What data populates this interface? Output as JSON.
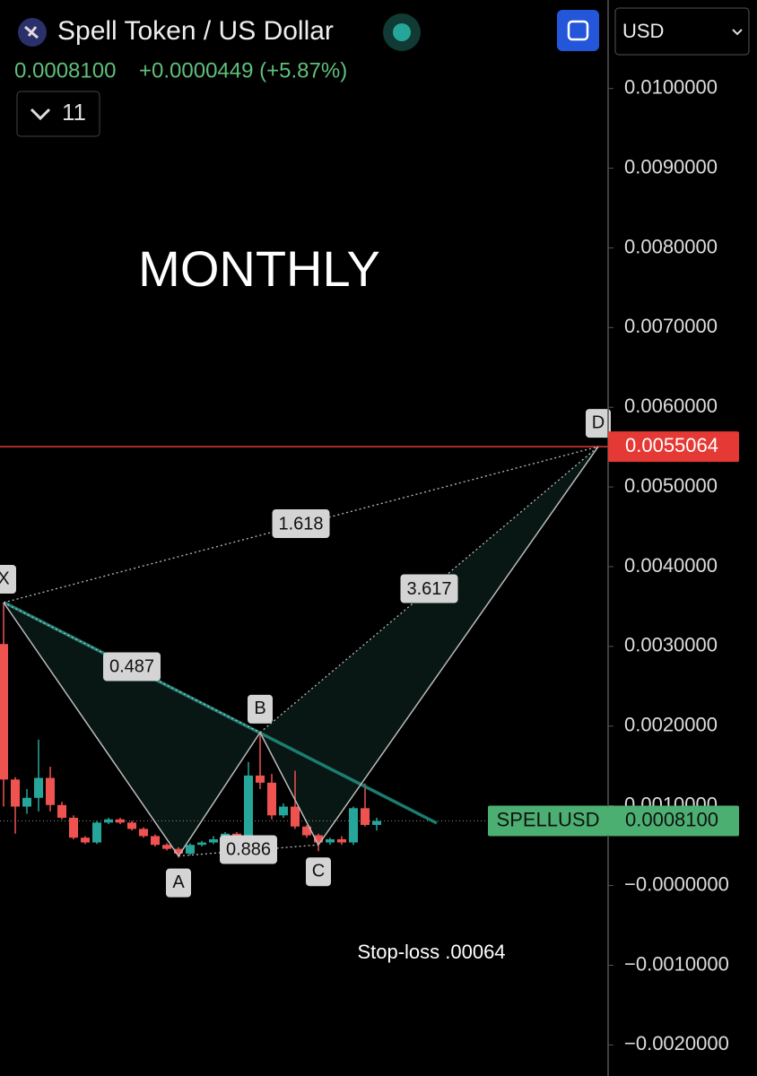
{
  "header": {
    "title": "Spell Token / US Dollar",
    "price": "0.0008100",
    "change": "+0.0000449 (+5.87%)",
    "interval": "11",
    "currency": "USD"
  },
  "annotation": "MONTHLY",
  "stop_loss": "Stop-loss  .00064",
  "chart_data": {
    "type": "candlestick",
    "candles": [
      {
        "open": 0.00303,
        "high": 0.00355,
        "low": 0.00099,
        "close": 0.00133
      },
      {
        "open": 0.00133,
        "high": 0.00136,
        "low": 0.00065,
        "close": 0.00099
      },
      {
        "open": 0.00099,
        "high": 0.00121,
        "low": 0.0009,
        "close": 0.0011
      },
      {
        "open": 0.0011,
        "high": 0.00183,
        "low": 0.00093,
        "close": 0.00135
      },
      {
        "open": 0.00135,
        "high": 0.00149,
        "low": 0.00093,
        "close": 0.00101
      },
      {
        "open": 0.00101,
        "high": 0.00105,
        "low": 0.00083,
        "close": 0.00085
      },
      {
        "open": 0.00085,
        "high": 0.00088,
        "low": 0.00058,
        "close": 0.0006
      },
      {
        "open": 0.0006,
        "high": 0.00062,
        "low": 0.00052,
        "close": 0.00054
      },
      {
        "open": 0.00054,
        "high": 0.00081,
        "low": 0.00052,
        "close": 0.00079
      },
      {
        "open": 0.00079,
        "high": 0.00085,
        "low": 0.00077,
        "close": 0.00083
      },
      {
        "open": 0.00083,
        "high": 0.00085,
        "low": 0.00077,
        "close": 0.00079
      },
      {
        "open": 0.00079,
        "high": 0.00081,
        "low": 0.00069,
        "close": 0.00071
      },
      {
        "open": 0.00071,
        "high": 0.00073,
        "low": 0.0006,
        "close": 0.00062
      },
      {
        "open": 0.00062,
        "high": 0.00064,
        "low": 0.00049,
        "close": 0.00051
      },
      {
        "open": 0.00051,
        "high": 0.00053,
        "low": 0.00044,
        "close": 0.00046
      },
      {
        "open": 0.00046,
        "high": 0.00048,
        "low": 0.00035,
        "close": 0.0004
      },
      {
        "open": 0.0004,
        "high": 0.00053,
        "low": 0.00038,
        "close": 0.00051
      },
      {
        "open": 0.00051,
        "high": 0.00056,
        "low": 0.00049,
        "close": 0.00054
      },
      {
        "open": 0.00054,
        "high": 0.00062,
        "low": 0.00052,
        "close": 0.00058
      },
      {
        "open": 0.00058,
        "high": 0.00067,
        "low": 0.00056,
        "close": 0.00065
      },
      {
        "open": 0.00065,
        "high": 0.00067,
        "low": 0.00046,
        "close": 0.00048
      },
      {
        "open": 0.00048,
        "high": 0.00155,
        "low": 0.00046,
        "close": 0.00138
      },
      {
        "open": 0.00138,
        "high": 0.00192,
        "low": 0.00121,
        "close": 0.00129
      },
      {
        "open": 0.00129,
        "high": 0.0014,
        "low": 0.00083,
        "close": 0.00088
      },
      {
        "open": 0.00088,
        "high": 0.00103,
        "low": 0.00085,
        "close": 0.00099
      },
      {
        "open": 0.00099,
        "high": 0.00144,
        "low": 0.00071,
        "close": 0.00074
      },
      {
        "open": 0.00074,
        "high": 0.00076,
        "low": 0.0006,
        "close": 0.00063
      },
      {
        "open": 0.00063,
        "high": 0.00065,
        "low": 0.00043,
        "close": 0.00054
      },
      {
        "open": 0.00054,
        "high": 0.0006,
        "low": 0.00051,
        "close": 0.00058
      },
      {
        "open": 0.00058,
        "high": 0.00062,
        "low": 0.00051,
        "close": 0.00054
      },
      {
        "open": 0.00054,
        "high": 0.00099,
        "low": 0.00051,
        "close": 0.00097
      },
      {
        "open": 0.00097,
        "high": 0.00128,
        "low": 0.00074,
        "close": 0.00076
      },
      {
        "open": 0.00076,
        "high": 0.00085,
        "low": 0.00069,
        "close": 0.00081
      }
    ],
    "up_color": "#26a69a",
    "down_color": "#ef5350",
    "ylim": [
      -0.00239,
      0.01111
    ],
    "yticks": [
      {
        "value": 0.01,
        "label": "0.0100000"
      },
      {
        "value": 0.009,
        "label": "0.0090000"
      },
      {
        "value": 0.008,
        "label": "0.0080000"
      },
      {
        "value": 0.007,
        "label": "0.0070000"
      },
      {
        "value": 0.006,
        "label": "0.0060000"
      },
      {
        "value": 0.005,
        "label": "0.0050000"
      },
      {
        "value": 0.004,
        "label": "0.0040000"
      },
      {
        "value": 0.003,
        "label": "0.0030000"
      },
      {
        "value": 0.002,
        "label": "0.0020000"
      },
      {
        "value": 0.001,
        "label": "0.0010000"
      },
      {
        "value": 0,
        "label": "−0.0000000"
      },
      {
        "value": -0.001,
        "label": "−0.0010000"
      },
      {
        "value": -0.002,
        "label": "−0.0020000"
      }
    ],
    "pattern": [
      {
        "name": "X",
        "bar": 0,
        "price": 0.00355
      },
      {
        "name": "A",
        "bar": 15,
        "price": 0.00037
      },
      {
        "name": "B",
        "bar": 22,
        "price": 0.00192
      },
      {
        "name": "C",
        "bar": 27,
        "price": 0.00051
      },
      {
        "name": "D",
        "bar": 51,
        "price": 0.0055064
      }
    ],
    "ratios": [
      "0.487",
      "0.886",
      "1.618",
      "3.617"
    ],
    "target": {
      "value": 0.0055064,
      "label": "0.0055064"
    },
    "last_price": {
      "symbol": "SPELLUSD",
      "value": 0.00081,
      "label": "0.0008100"
    }
  }
}
